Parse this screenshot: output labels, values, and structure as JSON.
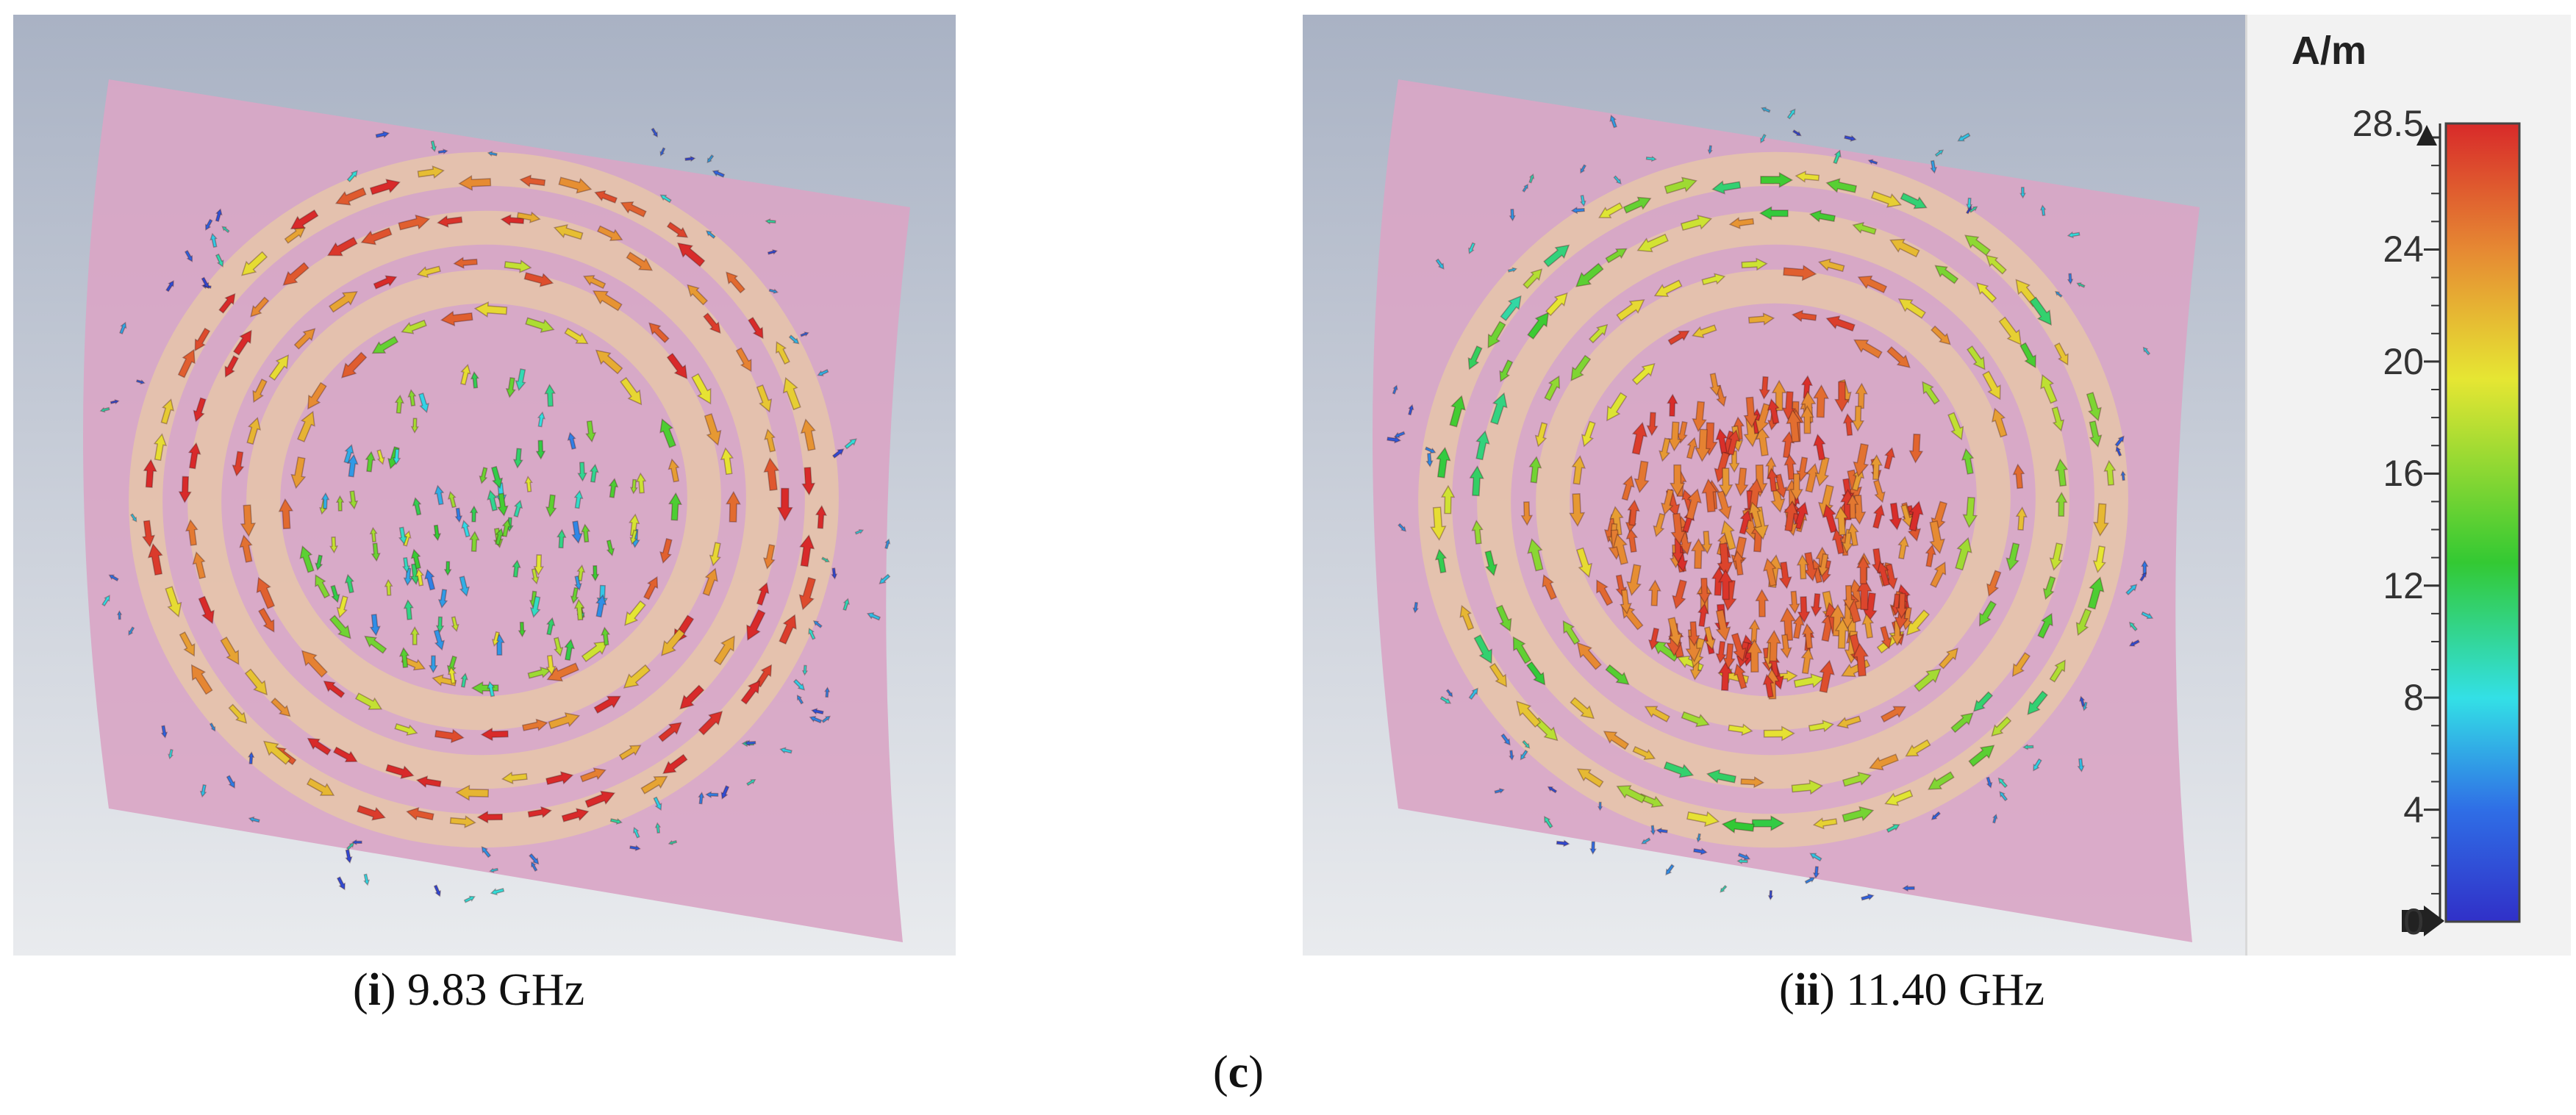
{
  "figure": {
    "label": "(c)",
    "label_letter": "c"
  },
  "panels": [
    {
      "id": "i",
      "frequency": "9.83 GHz",
      "mode": "outer-rings"
    },
    {
      "id": "ii",
      "frequency": "11.40 GHz",
      "mode": "center-strong"
    }
  ],
  "legend": {
    "unit": "A/m",
    "max": 28.5,
    "ticks": [
      "28.5",
      "24",
      "20",
      "16",
      "12",
      "8",
      "4",
      "0"
    ],
    "tick_values": [
      28.5,
      24,
      20,
      16,
      12,
      8,
      4,
      0
    ],
    "colors": [
      "#3333cc",
      "#2f7fe6",
      "#33e6e6",
      "#33cc33",
      "#e6e633",
      "#e68a33",
      "#e63333",
      "#d02020"
    ]
  },
  "colors": {
    "background_top": "#a9b2c4",
    "background_bottom": "#e9ebee",
    "substrate": "#d9a6c6",
    "ring": "#e8c9a6"
  }
}
